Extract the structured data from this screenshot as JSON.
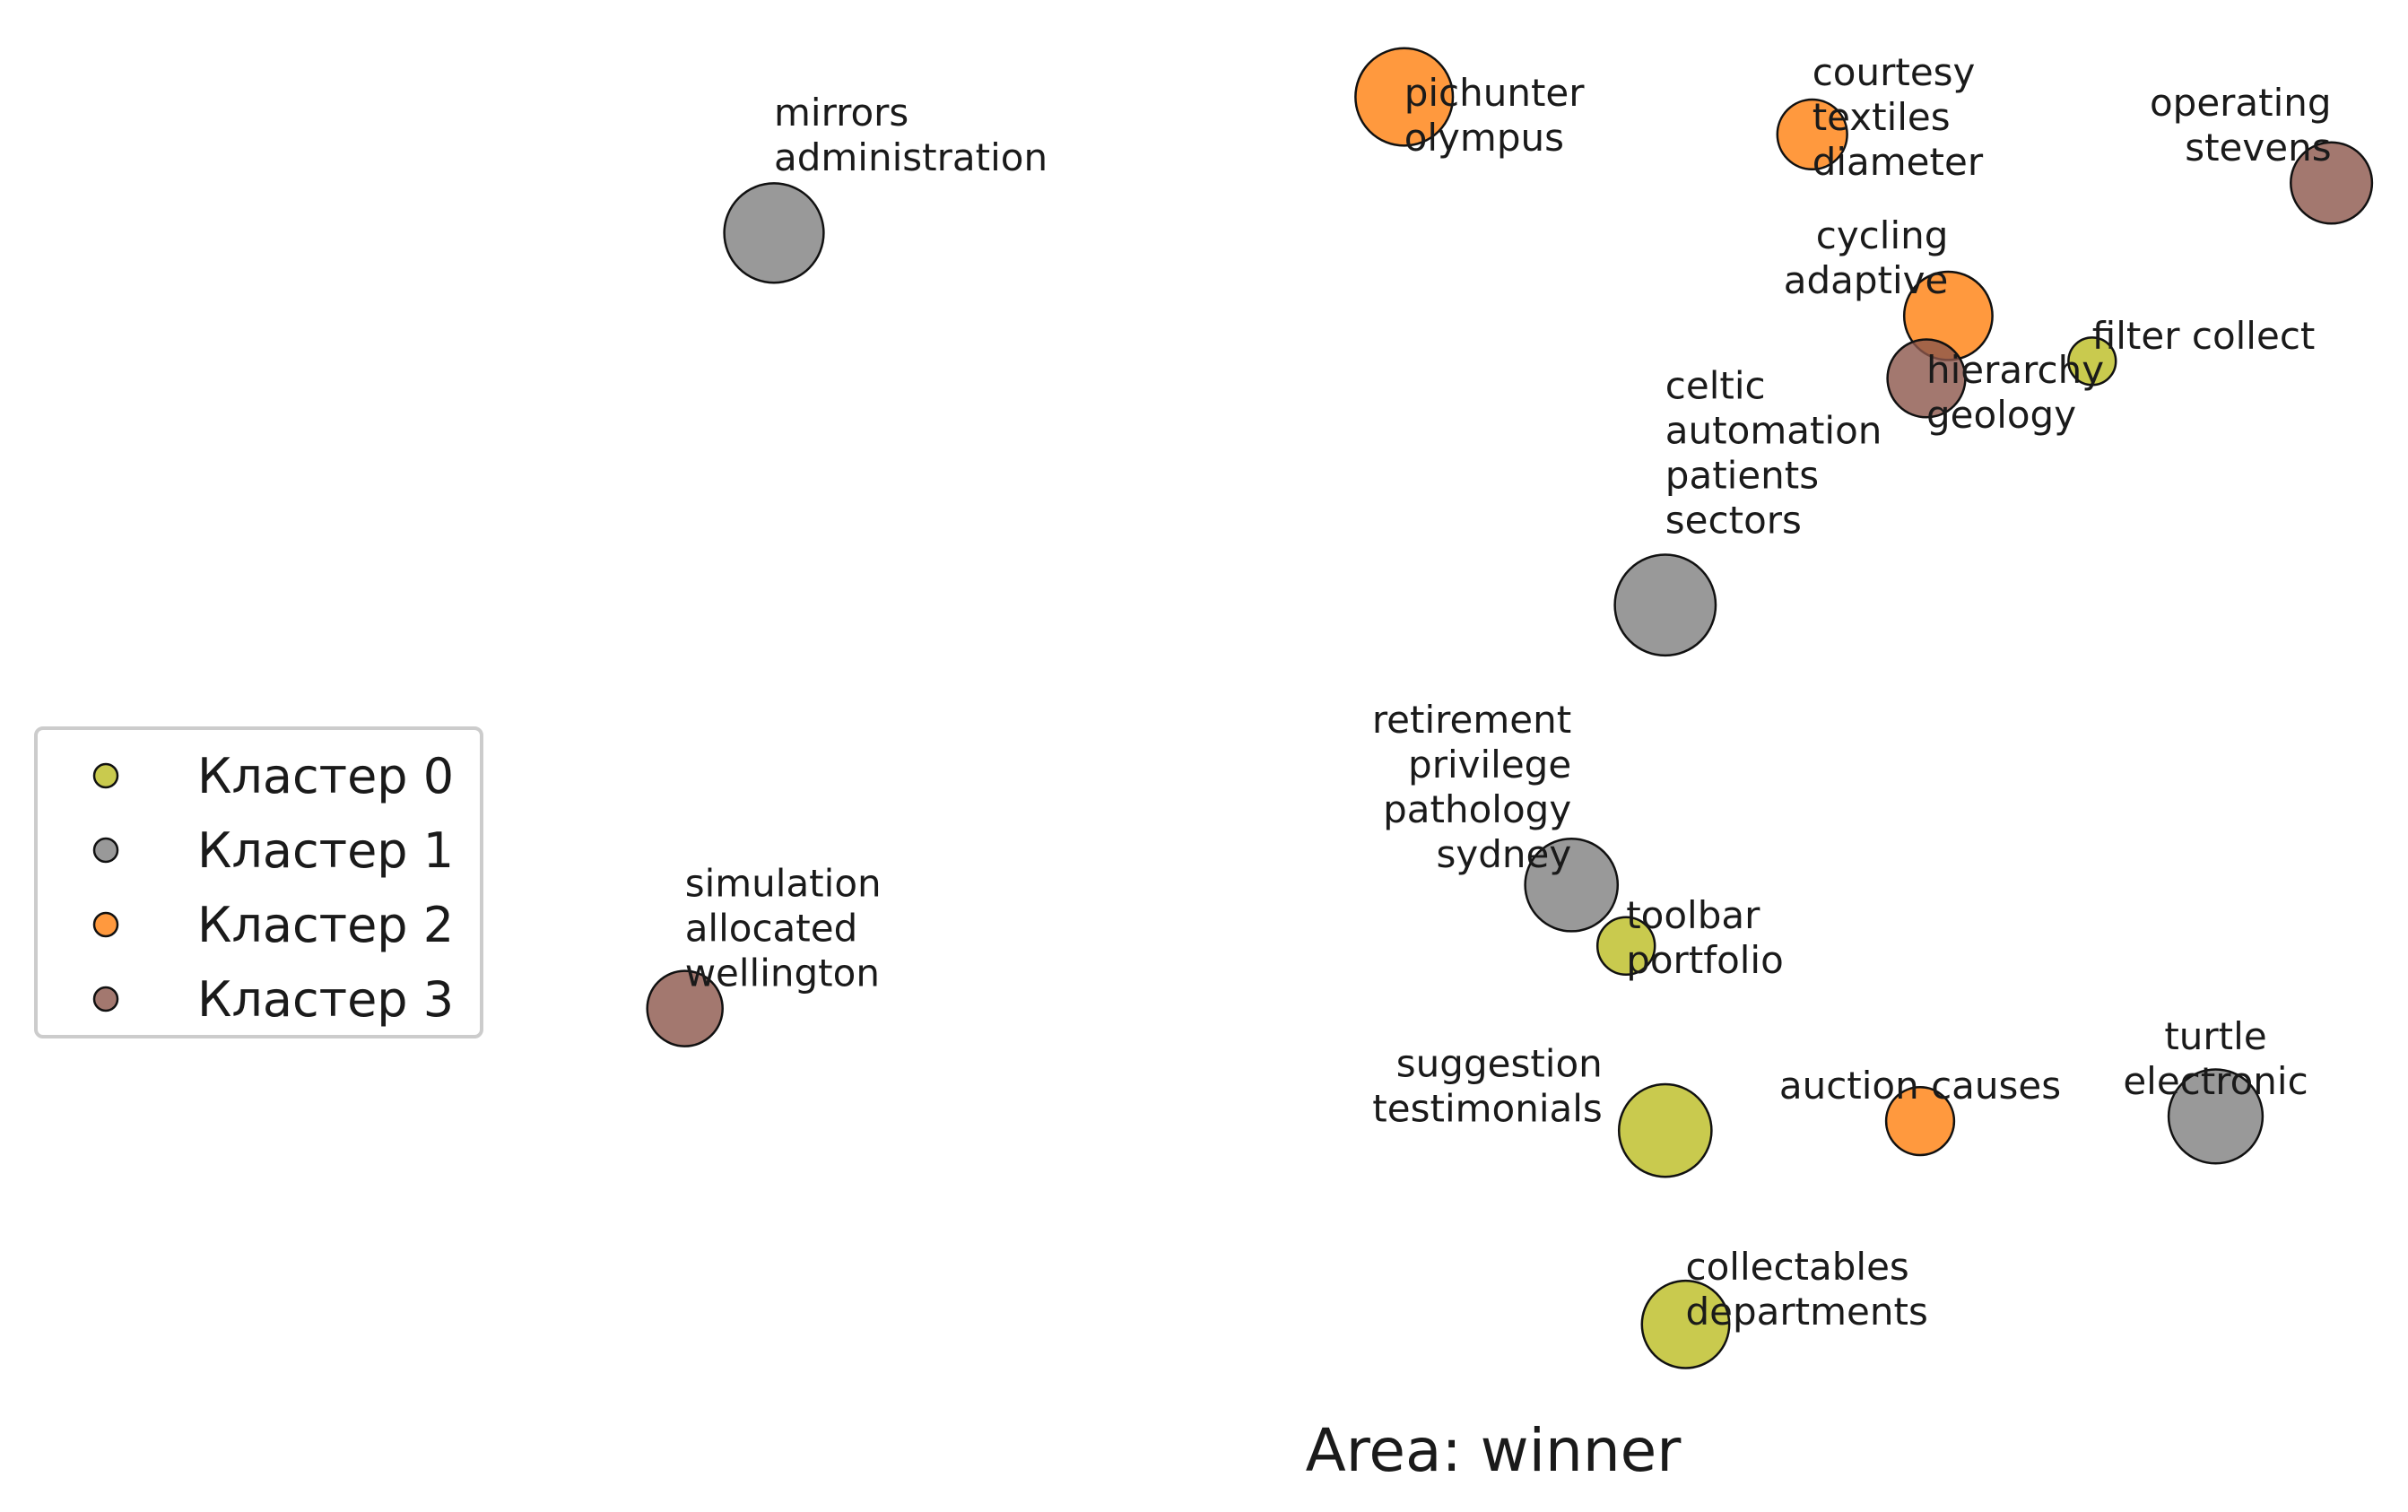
{
  "chart_data": {
    "type": "scatter",
    "title": "",
    "xlabel": "Area: winner",
    "ylabel": "",
    "xlim": [
      0,
      1540
    ],
    "ylim": [
      0,
      960
    ],
    "grid": false,
    "legend_position": "center-left",
    "series": [
      {
        "name": "Кластер 0",
        "color": "#bcbd22",
        "points": [
          {
            "x": 1338,
            "y": 231,
            "size": 0.17,
            "label": "filter collect"
          },
          {
            "x": 1040,
            "y": 605,
            "size": 0.25,
            "label": "toolbar\nportfolio"
          },
          {
            "x": 1065,
            "y": 723,
            "size": 0.65,
            "label": "suggestion\ntestimonials"
          },
          {
            "x": 1078,
            "y": 847,
            "size": 0.58,
            "label": "collectables\ndepartments"
          }
        ]
      },
      {
        "name": "Кластер 1",
        "color": "#7f7f7f",
        "points": [
          {
            "x": 495,
            "y": 149,
            "size": 0.75,
            "label": "mirrors\nadministration"
          },
          {
            "x": 1065,
            "y": 387,
            "size": 0.77,
            "label": "celtic\nautomation\npatients\nsectors"
          },
          {
            "x": 1005,
            "y": 566,
            "size": 0.65,
            "label": "retirement\nprivilege\npathology\nsydney"
          },
          {
            "x": 1417,
            "y": 714,
            "size": 0.67,
            "label": "turtle\nelectronic"
          }
        ]
      },
      {
        "name": "Кластер 2",
        "color": "#ff7f0e",
        "points": [
          {
            "x": 898,
            "y": 62,
            "size": 0.72,
            "label": "pichunter\nolympus"
          },
          {
            "x": 1159,
            "y": 86,
            "size": 0.37,
            "label": "courtesy\ntextiles\ndiameter"
          },
          {
            "x": 1246,
            "y": 202,
            "size": 0.59,
            "label": "cycling\nadaptive"
          },
          {
            "x": 1228,
            "y": 717,
            "size": 0.35,
            "label": "auction causes"
          }
        ]
      },
      {
        "name": "Кластер 3",
        "color": "#8c564b",
        "points": [
          {
            "x": 1491,
            "y": 117,
            "size": 0.5,
            "label": "operating\nstevens"
          },
          {
            "x": 1232,
            "y": 242,
            "size": 0.46,
            "label": "hierarchy\ngeology"
          },
          {
            "x": 438,
            "y": 645,
            "size": 0.43,
            "label": "simulation\nallocated\nwellington"
          }
        ]
      }
    ]
  }
}
